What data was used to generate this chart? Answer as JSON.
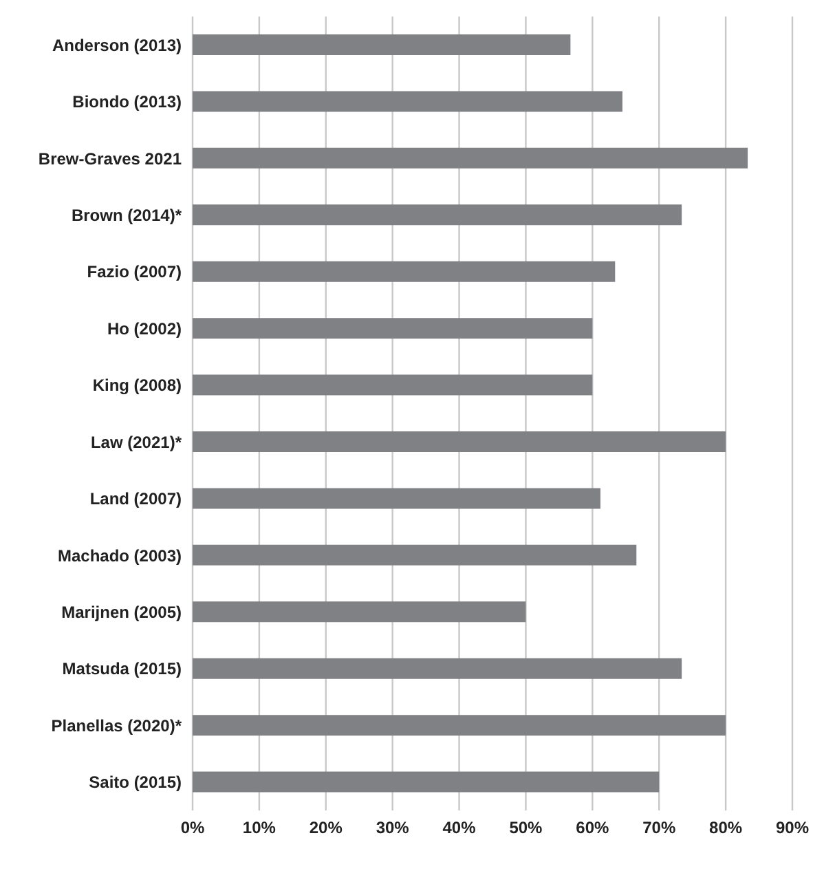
{
  "chart_data": {
    "type": "bar",
    "orientation": "horizontal",
    "categories": [
      "Anderson (2013)",
      "Biondo (2013)",
      "Brew-Graves 2021",
      "Brown (2014)*",
      "Fazio (2007)",
      "Ho (2002)",
      "King (2008)",
      "Law (2021)*",
      "Land (2007)",
      "Machado (2003)",
      "Marijnen (2005)",
      "Matsuda (2015)",
      "Planellas (2020)*",
      "Saito (2015)"
    ],
    "values": [
      56.7,
      64.5,
      83.3,
      73.4,
      63.4,
      60,
      60,
      80,
      61.2,
      66.6,
      50,
      73.4,
      80,
      70
    ],
    "color": "#808184",
    "xlim": [
      0,
      90
    ],
    "xticks": [
      {
        "value": 0,
        "label": "0%"
      },
      {
        "value": 10,
        "label": "10%"
      },
      {
        "value": 20,
        "label": "20%"
      },
      {
        "value": 30,
        "label": "30%"
      },
      {
        "value": 40,
        "label": "40%"
      },
      {
        "value": 50,
        "label": "50%"
      },
      {
        "value": 60,
        "label": "60%"
      },
      {
        "value": 70,
        "label": "70%"
      },
      {
        "value": 80,
        "label": "80%"
      },
      {
        "value": 90,
        "label": "90%"
      }
    ],
    "grid": "x"
  }
}
